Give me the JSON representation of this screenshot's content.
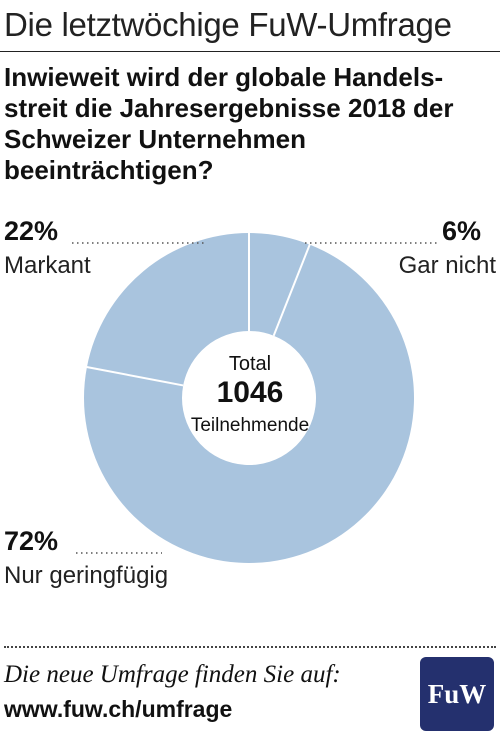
{
  "header": {
    "title": "Die letztwöchige FuW-Umfrage"
  },
  "question": "Inwieweit wird der globale Handels­streit die Jahresergebnisse 2018 der Schweizer Unternehmen beeinträchtigen?",
  "chart_data": {
    "type": "pie",
    "donut": true,
    "slices": [
      {
        "label": "Gar nicht",
        "value": 6,
        "value_text": "6%"
      },
      {
        "label": "Nur geringfügig",
        "value": 72,
        "value_text": "72%"
      },
      {
        "label": "Markant",
        "value": 22,
        "value_text": "22%"
      }
    ],
    "center": {
      "line1": "Total",
      "line2": "1046",
      "line3": "Teilnehmende"
    },
    "colors": {
      "slice": "#a9c4de",
      "separator": "#ffffff",
      "leader": "#555555"
    }
  },
  "footer": {
    "line1": "Die neue Umfrage finden Sie auf:",
    "line2": "www.fuw.ch/umfrage",
    "logo_text": "FuW",
    "logo_color": "#24306e"
  }
}
